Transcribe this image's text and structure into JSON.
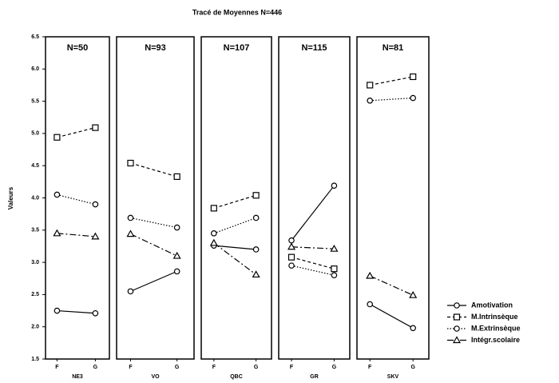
{
  "chart_data": {
    "type": "line",
    "title": "Tracé de Moyennes N=446",
    "ylabel": "Valeurs",
    "ylim": [
      1.5,
      6.5
    ],
    "yticks": [
      1.5,
      {
        "value": 2,
        "label": "2.0"
      },
      2.5,
      {
        "value": 3,
        "label": "3.0"
      },
      3.5,
      {
        "value": 4,
        "label": "4.0"
      },
      4.5,
      {
        "value": 5,
        "label": "5.0"
      },
      5.5,
      {
        "value": 6,
        "label": "6.0"
      },
      6.5
    ],
    "categories": [
      "F",
      "G"
    ],
    "legend": "right",
    "series": [
      {
        "name": "Amotivation",
        "color": "#000000",
        "marker": "circle",
        "dash": "solid"
      },
      {
        "name": "M.Intrinsèque",
        "color": "#000000",
        "marker": "square",
        "dash": "dashed"
      },
      {
        "name": "M.Extrinsèque",
        "color": "#000000",
        "marker": "circle",
        "dash": "dotted"
      },
      {
        "name": "Intégr.scolaire",
        "color": "#000000",
        "marker": "triangle",
        "dash": "dashdot"
      }
    ],
    "panels": [
      {
        "title": "N=50",
        "xlabel": "NE3",
        "values": [
          [
            2.25,
            2.21
          ],
          [
            4.94,
            5.09
          ],
          [
            4.05,
            3.9
          ],
          [
            3.45,
            3.4
          ]
        ]
      },
      {
        "title": "N=93",
        "xlabel": "VO",
        "values": [
          [
            2.55,
            2.86
          ],
          [
            4.54,
            4.33
          ],
          [
            3.69,
            3.54
          ],
          [
            3.44,
            3.1
          ]
        ]
      },
      {
        "title": "N=107",
        "xlabel": "QBC",
        "values": [
          [
            3.26,
            3.2
          ],
          [
            3.84,
            4.04
          ],
          [
            3.45,
            3.69
          ],
          [
            3.3,
            2.81
          ]
        ]
      },
      {
        "title": "N=115",
        "xlabel": "GR",
        "values": [
          [
            3.34,
            4.19
          ],
          [
            3.08,
            2.9
          ],
          [
            2.95,
            2.8
          ],
          [
            3.24,
            3.21
          ]
        ]
      },
      {
        "title": "N=81",
        "xlabel": "SKV",
        "values": [
          [
            2.35,
            1.98
          ],
          [
            5.75,
            5.88
          ],
          [
            5.51,
            5.55
          ],
          [
            2.79,
            2.49
          ]
        ]
      }
    ]
  }
}
